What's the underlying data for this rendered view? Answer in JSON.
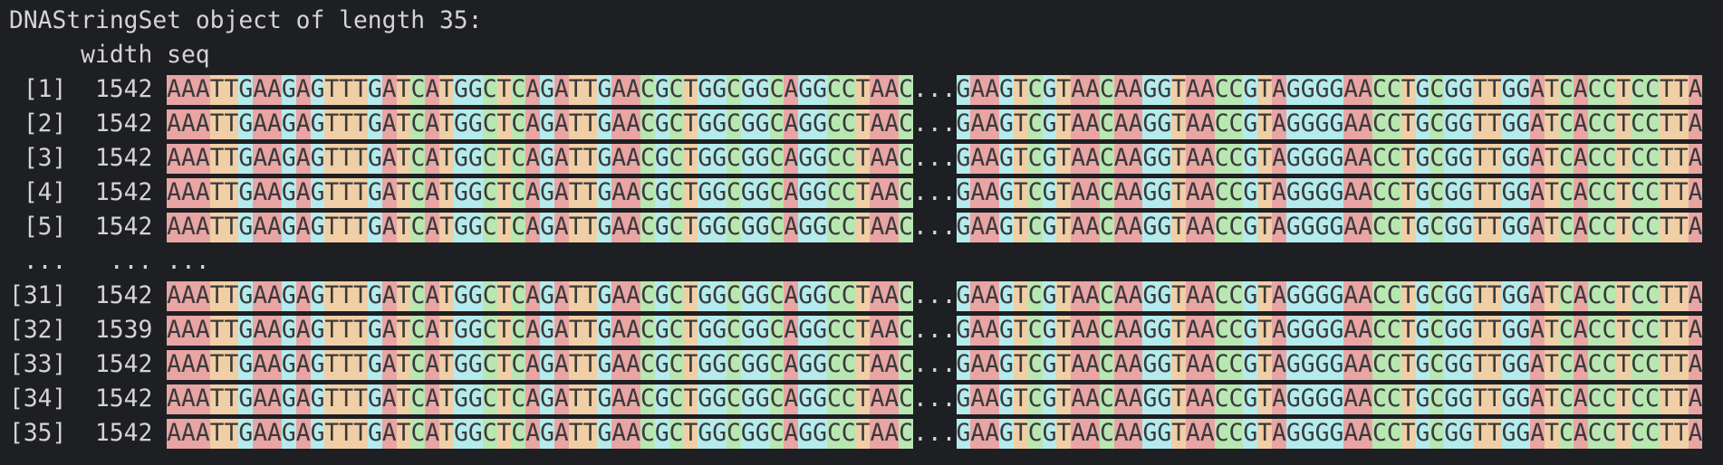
{
  "header": "DNAStringSet object of length 35:",
  "columns": [
    "width",
    "seq"
  ],
  "truncation": "...",
  "elided_row": [
    "...",
    "...",
    "..."
  ],
  "rows": [
    {
      "index": "[1]",
      "width": 1542,
      "seq_head": "AAATTGAAGAGTTTGATCATGGCTCAGATTGAACGCTGGCGGCAGGCCTAAC",
      "seq_tail": "GAAGTCGTAACAAGGTAACCGTAGGGGAACCTGCGGTTGGATCACCTCCTTA"
    },
    {
      "index": "[2]",
      "width": 1542,
      "seq_head": "AAATTGAAGAGTTTGATCATGGCTCAGATTGAACGCTGGCGGCAGGCCTAAC",
      "seq_tail": "GAAGTCGTAACAAGGTAACCGTAGGGGAACCTGCGGTTGGATCACCTCCTTA"
    },
    {
      "index": "[3]",
      "width": 1542,
      "seq_head": "AAATTGAAGAGTTTGATCATGGCTCAGATTGAACGCTGGCGGCAGGCCTAAC",
      "seq_tail": "GAAGTCGTAACAAGGTAACCGTAGGGGAACCTGCGGTTGGATCACCTCCTTA"
    },
    {
      "index": "[4]",
      "width": 1542,
      "seq_head": "AAATTGAAGAGTTTGATCATGGCTCAGATTGAACGCTGGCGGCAGGCCTAAC",
      "seq_tail": "GAAGTCGTAACAAGGTAACCGTAGGGGAACCTGCGGTTGGATCACCTCCTTA"
    },
    {
      "index": "[5]",
      "width": 1542,
      "seq_head": "AAATTGAAGAGTTTGATCATGGCTCAGATTGAACGCTGGCGGCAGGCCTAAC",
      "seq_tail": "GAAGTCGTAACAAGGTAACCGTAGGGGAACCTGCGGTTGGATCACCTCCTTA"
    },
    {
      "index": "[31]",
      "width": 1542,
      "seq_head": "AAATTGAAGAGTTTGATCATGGCTCAGATTGAACGCTGGCGGCAGGCCTAAC",
      "seq_tail": "GAAGTCGTAACAAGGTAACCGTAGGGGAACCTGCGGTTGGATCACCTCCTTA"
    },
    {
      "index": "[32]",
      "width": 1539,
      "seq_head": "AAATTGAAGAGTTTGATCATGGCTCAGATTGAACGCTGGCGGCAGGCCTAAC",
      "seq_tail": "GAAGTCGTAACAAGGTAACCGTAGGGGAACCTGCGGTTGGATCACCTCCTTA"
    },
    {
      "index": "[33]",
      "width": 1542,
      "seq_head": "AAATTGAAGAGTTTGATCATGGCTCAGATTGAACGCTGGCGGCAGGCCTAAC",
      "seq_tail": "GAAGTCGTAACAAGGTAACCGTAGGGGAACCTGCGGTTGGATCACCTCCTTA"
    },
    {
      "index": "[34]",
      "width": 1542,
      "seq_head": "AAATTGAAGAGTTTGATCATGGCTCAGATTGAACGCTGGCGGCAGGCCTAAC",
      "seq_tail": "GAAGTCGTAACAAGGTAACCGTAGGGGAACCTGCGGTTGGATCACCTCCTTA"
    },
    {
      "index": "[35]",
      "width": 1542,
      "seq_head": "AAATTGAAGAGTTTGATCATGGCTCAGATTGAACGCTGGCGGCAGGCCTAAC",
      "seq_tail": "GAAGTCGTAACAAGGTAACCGTAGGGGAACCTGCGGTTGGATCACCTCCTTA"
    }
  ]
}
